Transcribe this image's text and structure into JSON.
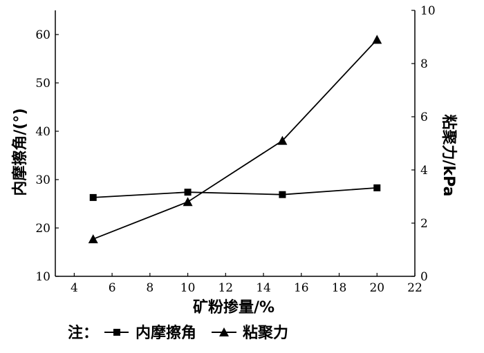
{
  "chart_data": {
    "type": "line",
    "title": "",
    "xlabel": "矿粉掺量/%",
    "ylabel_left": "内摩擦角/(°)",
    "ylabel_right": "粘聚力/kPa",
    "xlim": [
      3,
      22
    ],
    "xticks": [
      4,
      6,
      8,
      10,
      12,
      14,
      16,
      18,
      20,
      22
    ],
    "ylim_left": [
      10,
      65
    ],
    "yticks_left": [
      10,
      20,
      30,
      40,
      50,
      60
    ],
    "ylim_right": [
      0,
      10
    ],
    "yticks_right": [
      0,
      2,
      4,
      6,
      8,
      10
    ],
    "x": [
      5,
      10,
      15,
      20
    ],
    "series": [
      {
        "name": "内摩擦角",
        "axis": "left",
        "marker": "square",
        "values": [
          26.3,
          27.4,
          26.9,
          28.3
        ]
      },
      {
        "name": "粘聚力",
        "axis": "right",
        "marker": "triangle",
        "values": [
          1.4,
          2.8,
          5.1,
          8.9
        ]
      }
    ],
    "legend": {
      "prefix": "注：",
      "position": "bottom"
    },
    "grid": false
  }
}
